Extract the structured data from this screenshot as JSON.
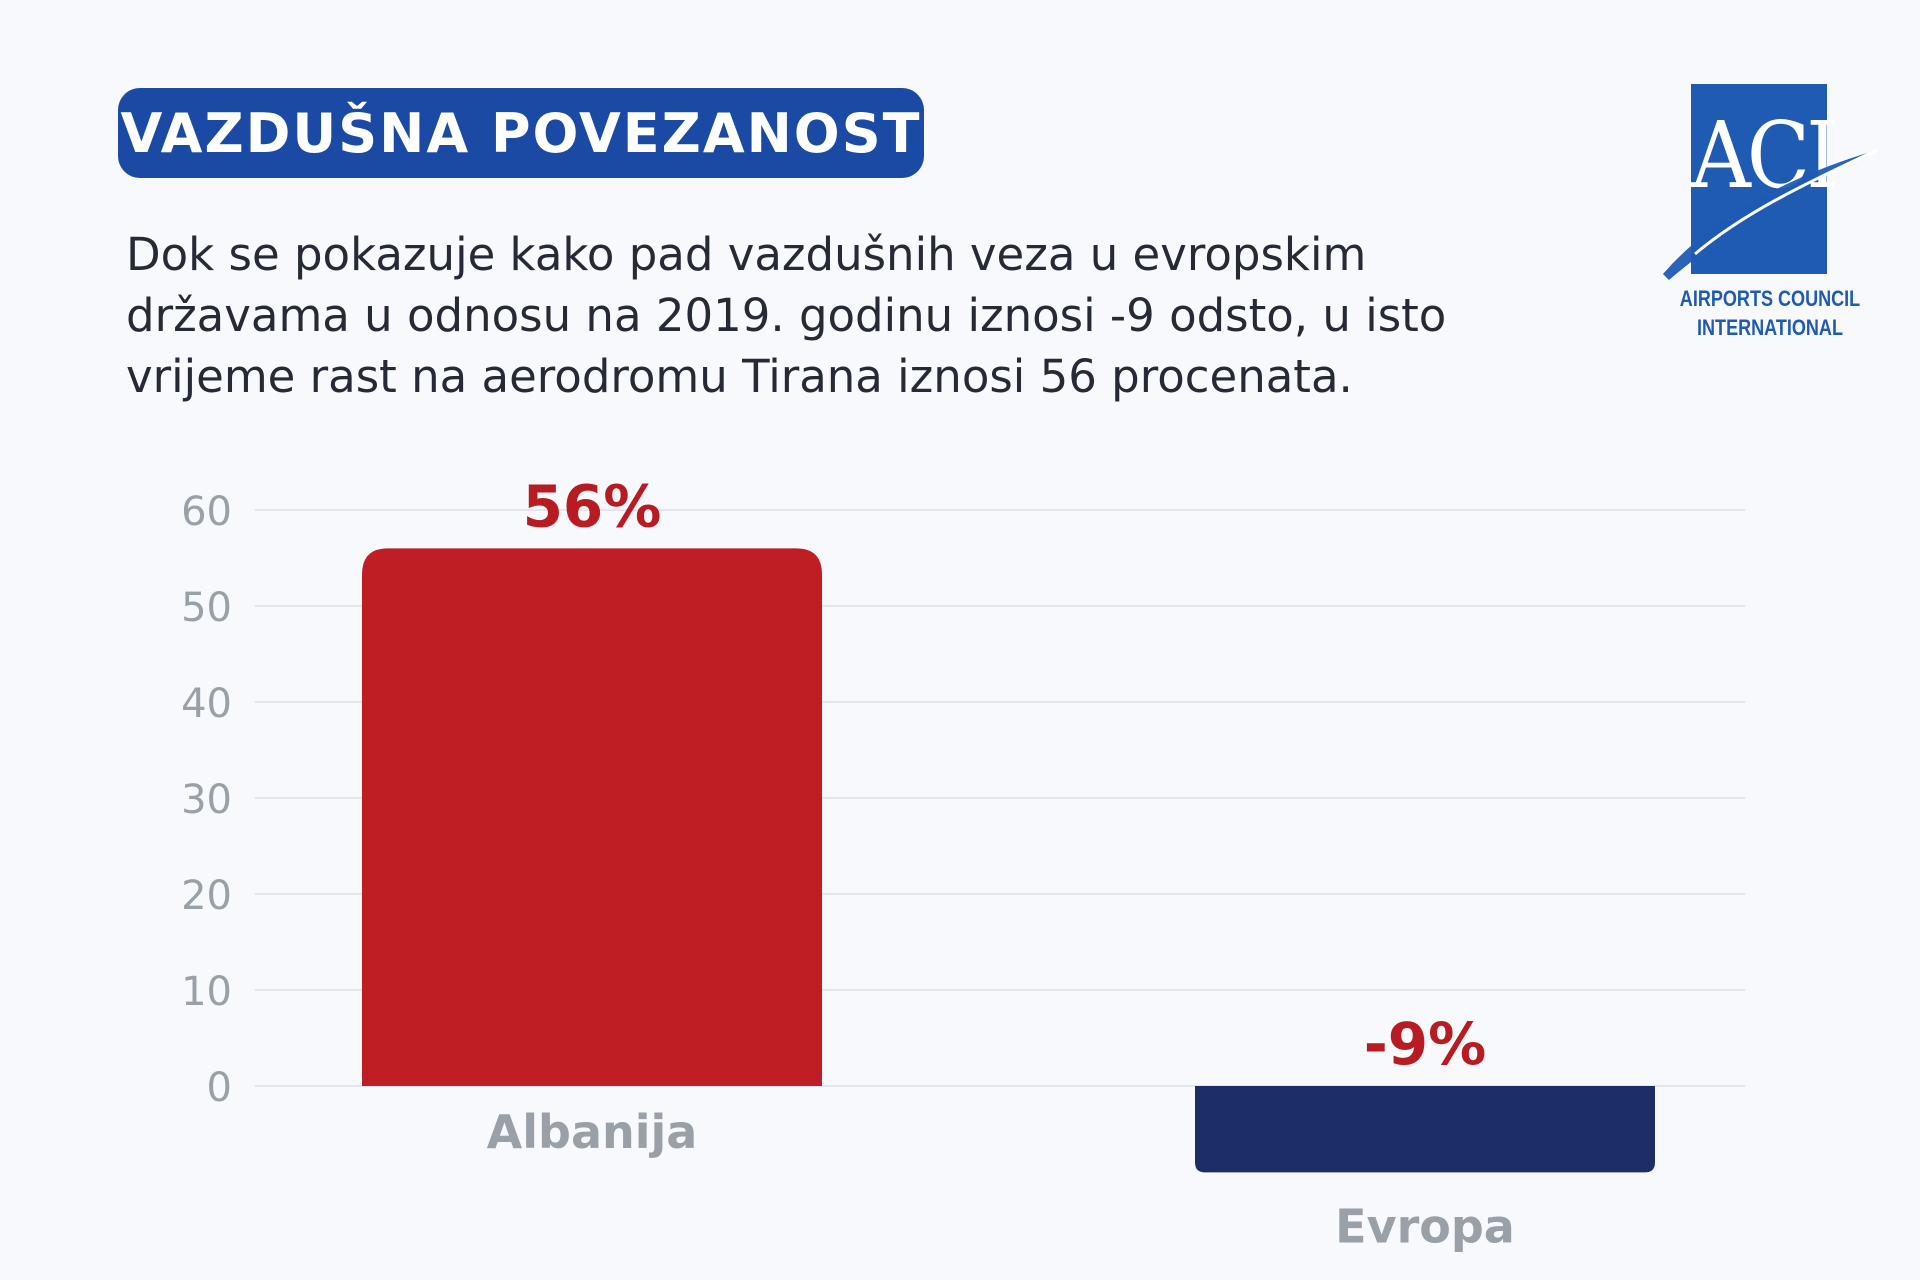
{
  "header": {
    "title": "VAZDUŠNA POVEZANOST",
    "description": "Dok se pokazuje kako pad vazdušnih veza u evropskim državama u odnosu na 2019. godinu iznosi -9 odsto, u isto vrijeme rast na aerodromu Tirana iznosi 56 procenata."
  },
  "logo": {
    "letters": "ACI",
    "line1": "AIRPORTS COUNCIL",
    "line2": "INTERNATIONAL"
  },
  "colors": {
    "title_bg": "#1a4aa3",
    "logo_blue": "#1f5bb3",
    "bar_albanija": "#bf1e24",
    "bar_evropa": "#1b2f66",
    "value_label": "#b71c22",
    "axis_text": "#9aa0a8",
    "gridline": "#e3e6ef"
  },
  "chart_data": {
    "type": "bar",
    "categories": [
      "Albanija",
      "Evropa"
    ],
    "values": [
      56,
      -9
    ],
    "value_labels": [
      "56%",
      "-9%"
    ],
    "yticks": [
      "0",
      "10",
      "20",
      "30",
      "40",
      "50",
      "60"
    ],
    "ylim": [
      -9,
      60
    ],
    "grid": true,
    "title": "",
    "xlabel": "",
    "ylabel": ""
  }
}
